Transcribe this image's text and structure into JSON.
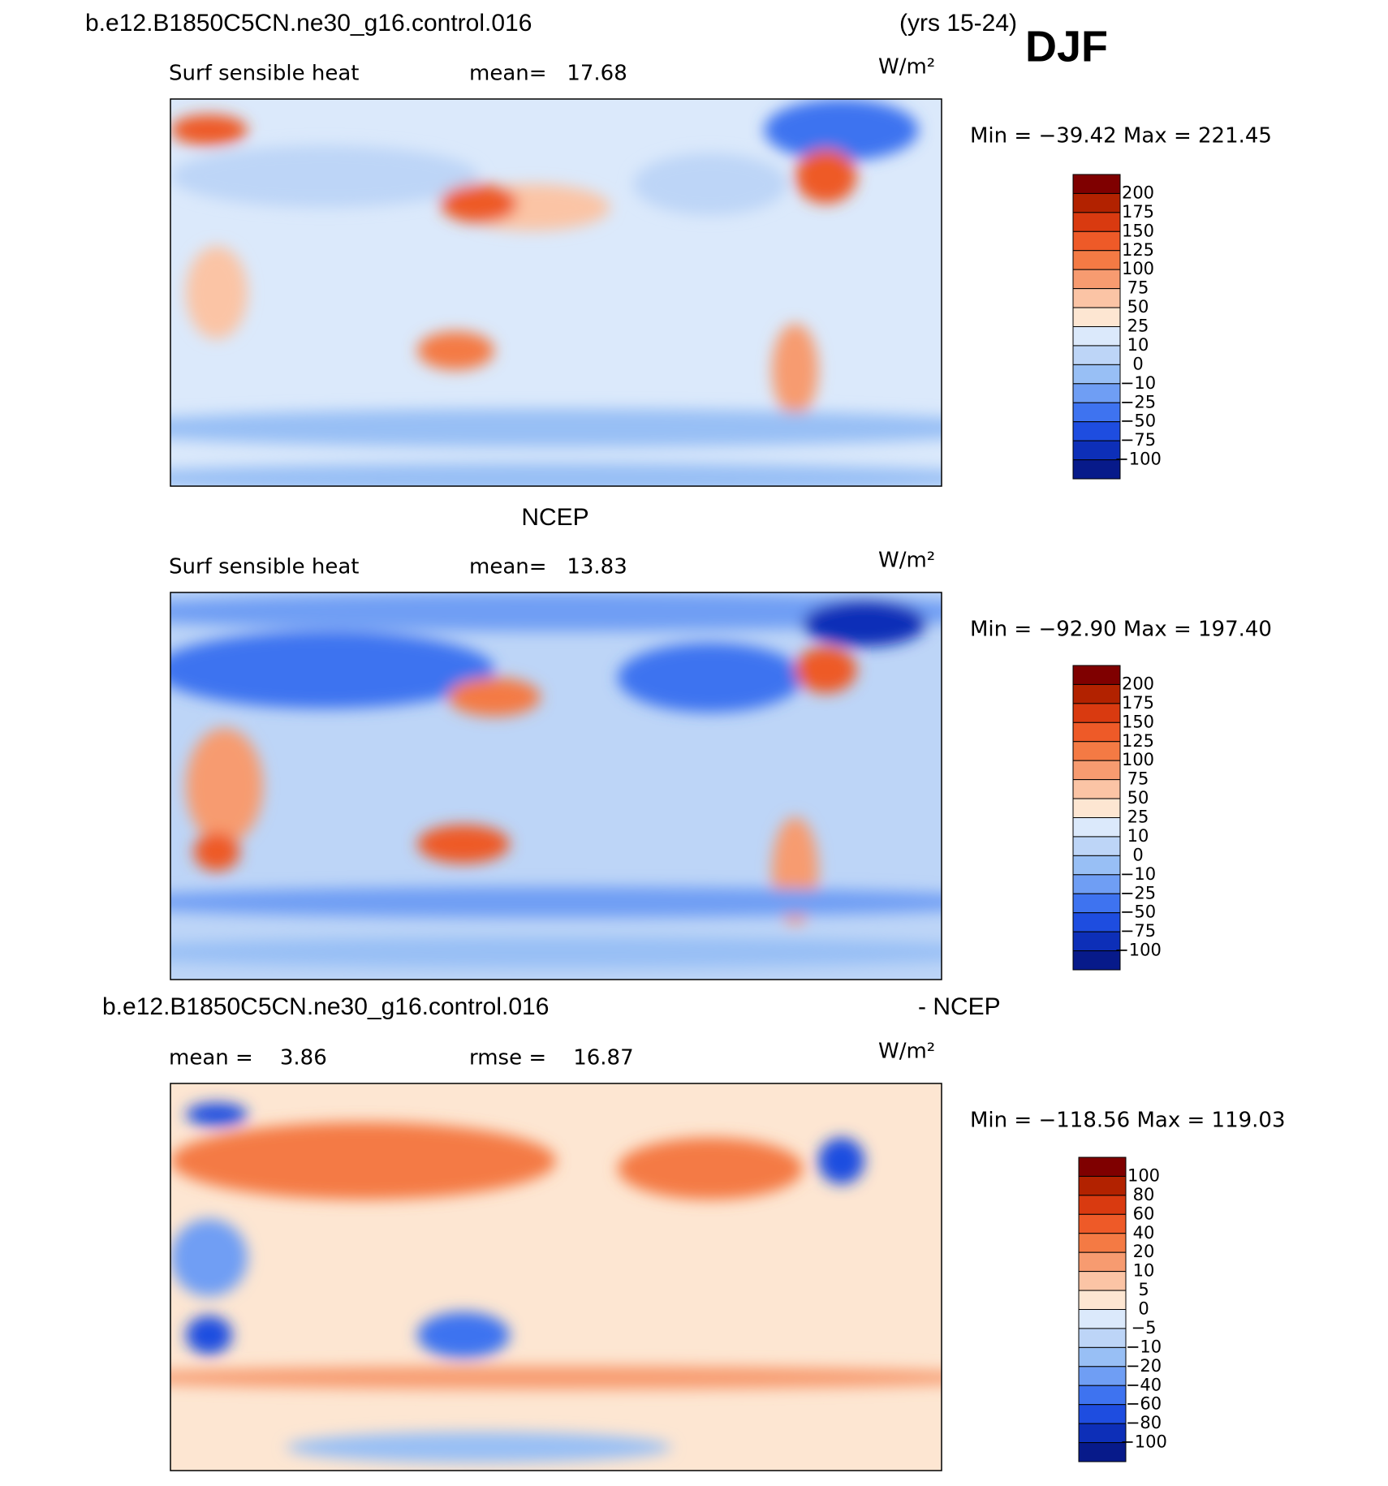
{
  "header": {
    "run": "b.e12.B1850C5CN.ne30_g16.control.016",
    "years": "(yrs 15-24)",
    "season": "DJF"
  },
  "panels": [
    {
      "left": "Surf sensible heat",
      "middle": "mean=   17.68",
      "units": "W/m²",
      "minmax": "Min = −39.42 Max = 221.45",
      "colorbar": {
        "labels": [
          "200",
          "175",
          "150",
          "125",
          "100",
          "75",
          "50",
          "25",
          "10",
          "0",
          "−10",
          "−25",
          "−50",
          "−75",
          "−100"
        ],
        "colors": [
          "#7f0000",
          "#b22200",
          "#d93a10",
          "#ee5a28",
          "#f47a44",
          "#f79b70",
          "#fbc4a5",
          "#fde6d2",
          "#dbe9fb",
          "#bdd5f7",
          "#98bff5",
          "#6f9ef4",
          "#3e73f0",
          "#1e4de0",
          "#0d2fb8",
          "#071a8a"
        ]
      }
    },
    {
      "title": "NCEP",
      "left": "Surf sensible heat",
      "middle": "mean=   13.83",
      "units": "W/m²",
      "minmax": "Min = −92.90 Max = 197.40",
      "colorbar": {
        "labels": [
          "200",
          "175",
          "150",
          "125",
          "100",
          "75",
          "50",
          "25",
          "10",
          "0",
          "−10",
          "−25",
          "−50",
          "−75",
          "−100"
        ],
        "colors": [
          "#7f0000",
          "#b22200",
          "#d93a10",
          "#ee5a28",
          "#f47a44",
          "#f79b70",
          "#fbc4a5",
          "#fde6d2",
          "#dbe9fb",
          "#bdd5f7",
          "#98bff5",
          "#6f9ef4",
          "#3e73f0",
          "#1e4de0",
          "#0d2fb8",
          "#071a8a"
        ]
      }
    },
    {
      "title": "b.e12.B1850C5CN.ne30_g16.control.016",
      "title_right": "- NCEP",
      "left": "mean =    3.86",
      "middle": "rmse =    16.87",
      "units": "W/m²",
      "minmax": "Min = −118.56 Max = 119.03",
      "colorbar": {
        "labels": [
          "100",
          "80",
          "60",
          "40",
          "20",
          "10",
          "5",
          "0",
          "−5",
          "−10",
          "−20",
          "−40",
          "−60",
          "−80",
          "−100"
        ],
        "colors": [
          "#7f0000",
          "#b22200",
          "#d93a10",
          "#ee5a28",
          "#f47a44",
          "#f79b70",
          "#fbc4a5",
          "#fde6d2",
          "#dbe9fb",
          "#bdd5f7",
          "#98bff5",
          "#6f9ef4",
          "#3e73f0",
          "#1e4de0",
          "#0d2fb8",
          "#071a8a"
        ]
      }
    }
  ]
}
